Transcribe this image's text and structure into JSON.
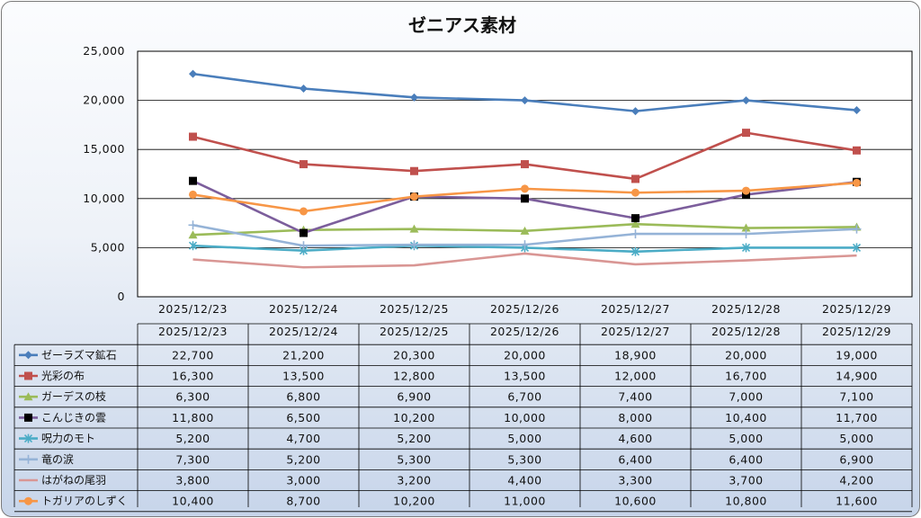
{
  "chart_data": {
    "type": "line",
    "title": "ゼニアス素材",
    "categories": [
      "2025/12/23",
      "2025/12/24",
      "2025/12/25",
      "2025/12/26",
      "2025/12/27",
      "2025/12/28",
      "2025/12/29"
    ],
    "ylim": [
      0,
      25000
    ],
    "yticks": [
      "0",
      "5,000",
      "10,000",
      "15,000",
      "20,000",
      "25,000"
    ],
    "ytick_values": [
      0,
      5000,
      10000,
      15000,
      20000,
      25000
    ],
    "xlabel": "",
    "ylabel": "",
    "grid": true,
    "legend": "data-table-below",
    "series": [
      {
        "name": "ゼーラズマ鉱石",
        "color": "#4a7ebb",
        "marker": "diamond",
        "values": [
          22700,
          21200,
          20300,
          20000,
          18900,
          20000,
          19000
        ],
        "labels": [
          "22,700",
          "21,200",
          "20,300",
          "20,000",
          "18,900",
          "20,000",
          "19,000"
        ]
      },
      {
        "name": "光彩の布",
        "color": "#c0504d",
        "marker": "square",
        "values": [
          16300,
          13500,
          12800,
          13500,
          12000,
          16700,
          14900
        ],
        "labels": [
          "16,300",
          "13,500",
          "12,800",
          "13,500",
          "12,000",
          "16,700",
          "14,900"
        ]
      },
      {
        "name": "ガーデスの枝",
        "color": "#9bbb59",
        "marker": "triangle",
        "values": [
          6300,
          6800,
          6900,
          6700,
          7400,
          7000,
          7100
        ],
        "labels": [
          "6,300",
          "6,800",
          "6,900",
          "6,700",
          "7,400",
          "7,000",
          "7,100"
        ]
      },
      {
        "name": "こんじきの雲",
        "color": "#7c5e9c",
        "marker": "blacksquare",
        "values": [
          11800,
          6500,
          10200,
          10000,
          8000,
          10400,
          11700
        ],
        "labels": [
          "11,800",
          "6,500",
          "10,200",
          "10,000",
          "8,000",
          "10,400",
          "11,700"
        ]
      },
      {
        "name": "呪力のモト",
        "color": "#4bacc6",
        "marker": "x",
        "values": [
          5200,
          4700,
          5200,
          5000,
          4600,
          5000,
          5000
        ],
        "labels": [
          "5,200",
          "4,700",
          "5,200",
          "5,000",
          "4,600",
          "5,000",
          "5,000"
        ]
      },
      {
        "name": "竜の涙",
        "color": "#95b3d7",
        "marker": "plus",
        "values": [
          7300,
          5200,
          5300,
          5300,
          6400,
          6400,
          6900
        ],
        "labels": [
          "7,300",
          "5,200",
          "5,300",
          "5,300",
          "6,400",
          "6,400",
          "6,900"
        ]
      },
      {
        "name": "はがねの尾羽",
        "color": "#d99694",
        "marker": "none",
        "values": [
          3800,
          3000,
          3200,
          4400,
          3300,
          3700,
          4200
        ],
        "labels": [
          "3,800",
          "3,000",
          "3,200",
          "4,400",
          "3,300",
          "3,700",
          "4,200"
        ]
      },
      {
        "name": "トガリアのしずく",
        "color": "#f79646",
        "marker": "circle",
        "values": [
          10400,
          8700,
          10200,
          11000,
          10600,
          10800,
          11600
        ],
        "labels": [
          "10,400",
          "8,700",
          "10,200",
          "11,000",
          "10,600",
          "10,800",
          "11,600"
        ]
      }
    ]
  }
}
